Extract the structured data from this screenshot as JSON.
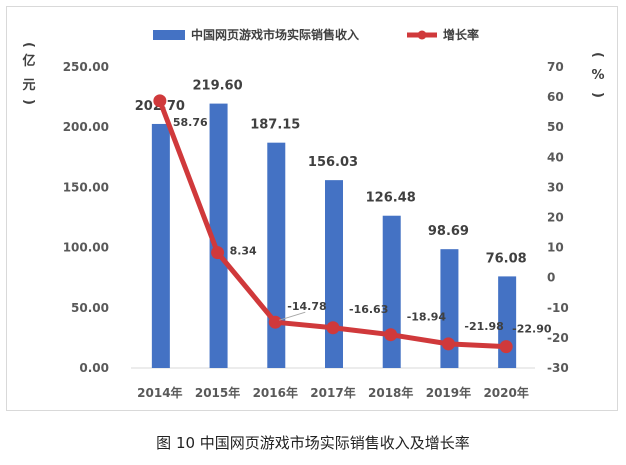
{
  "chart_data": {
    "type": "bar",
    "categories": [
      "2014年",
      "2015年",
      "2016年",
      "2017年",
      "2018年",
      "2019年",
      "2020年"
    ],
    "series": [
      {
        "name": "中国网页游戏市场实际销售收入",
        "type": "bar",
        "axis": "left",
        "color": "#4472c4",
        "values": [
          202.7,
          219.6,
          187.15,
          156.03,
          126.48,
          98.69,
          76.08
        ],
        "labels": [
          "202.70",
          "219.60",
          "187.15",
          "156.03",
          "126.48",
          "98.69",
          "76.08"
        ]
      },
      {
        "name": "增长率",
        "type": "line",
        "axis": "right",
        "color": "#d0393b",
        "values": [
          58.76,
          8.34,
          -14.78,
          -16.63,
          -18.94,
          -21.98,
          -22.9
        ],
        "labels": [
          "58.76",
          "8.34",
          "-14.78",
          "-16.63",
          "-18.94",
          "-21.98",
          "-22.90"
        ]
      }
    ],
    "y_left": {
      "unit_label": [
        "(",
        "亿",
        "元",
        ")"
      ],
      "range": [
        0,
        250
      ],
      "ticks": [
        "0.00",
        "50.00",
        "100.00",
        "150.00",
        "200.00",
        "250.00"
      ]
    },
    "y_right": {
      "unit_label": [
        "%",
        "(",
        ")"
      ],
      "range": [
        -30,
        70
      ],
      "ticks": [
        "-30",
        "-20",
        "-10",
        "0",
        "10",
        "20",
        "30",
        "40",
        "50",
        "60",
        "70"
      ]
    },
    "legend_position": "top-center",
    "grid": false
  },
  "caption": "图 10  中国网页游戏市场实际销售收入及增长率"
}
